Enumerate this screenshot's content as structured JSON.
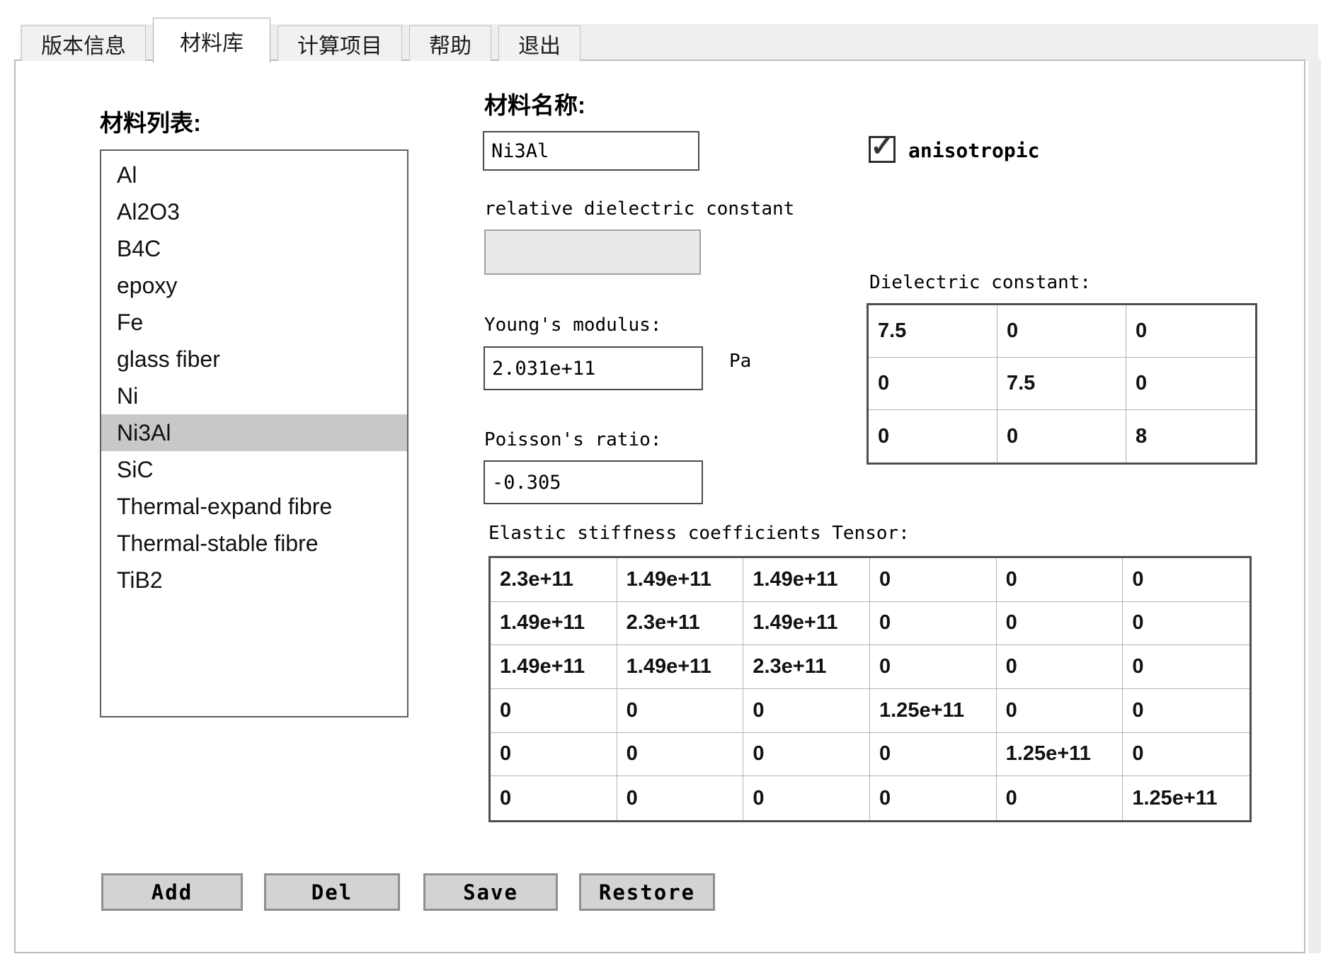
{
  "tabs": {
    "items": [
      {
        "label": "版本信息",
        "name": "tab-version-info",
        "active": false
      },
      {
        "label": "材料库",
        "name": "tab-material-library",
        "active": true
      },
      {
        "label": "计算项目",
        "name": "tab-calculation-project",
        "active": false
      },
      {
        "label": "帮助",
        "name": "tab-help",
        "active": false
      },
      {
        "label": "退出",
        "name": "tab-exit",
        "active": false
      }
    ]
  },
  "material_list": {
    "label": "材料列表:",
    "items": [
      "Al",
      "Al2O3",
      "B4C",
      "epoxy",
      "Fe",
      "glass fiber",
      "Ni",
      "Ni3Al",
      "SiC",
      "Thermal-expand fibre",
      "Thermal-stable fibre",
      "TiB2"
    ],
    "selected_index": 7,
    "selected_value": "Ni3Al"
  },
  "material_form": {
    "name_label": "材料名称:",
    "name_value": "Ni3Al",
    "relative_dielectric_label": "relative dielectric constant",
    "relative_dielectric_value": "",
    "anisotropic_label": "anisotropic",
    "anisotropic_checked": true,
    "youngs_modulus_label": "Young's modulus:",
    "youngs_modulus_value": "2.031e+11",
    "youngs_modulus_unit": "Pa",
    "poissons_ratio_label": "Poisson's ratio:",
    "poissons_ratio_value": "-0.305"
  },
  "dielectric_table": {
    "label": "Dielectric constant:",
    "values": [
      [
        "7.5",
        "0",
        "0"
      ],
      [
        "0",
        "7.5",
        "0"
      ],
      [
        "0",
        "0",
        "8"
      ]
    ]
  },
  "stiffness_table": {
    "label": "Elastic stiffness coefficients Tensor:",
    "values": [
      [
        "2.3e+11",
        "1.49e+11",
        "1.49e+11",
        "0",
        "0",
        "0"
      ],
      [
        "1.49e+11",
        "2.3e+11",
        "1.49e+11",
        "0",
        "0",
        "0"
      ],
      [
        "1.49e+11",
        "1.49e+11",
        "2.3e+11",
        "0",
        "0",
        "0"
      ],
      [
        "0",
        "0",
        "0",
        "1.25e+11",
        "0",
        "0"
      ],
      [
        "0",
        "0",
        "0",
        "0",
        "1.25e+11",
        "0"
      ],
      [
        "0",
        "0",
        "0",
        "0",
        "0",
        "1.25e+11"
      ]
    ]
  },
  "buttons": {
    "add": "Add",
    "del": "Del",
    "save": "Save",
    "restore": "Restore"
  },
  "colors": {
    "selected_item_bg": "#c8c8c8",
    "disabled_input_bg": "#e9e9e9",
    "button_bg": "#d3d3d3",
    "dark_border": "#4a4a4a",
    "grid_line": "#b3b3b3",
    "tab_bg": "#f1f1f1",
    "panel_border": "#bcbcbc"
  }
}
